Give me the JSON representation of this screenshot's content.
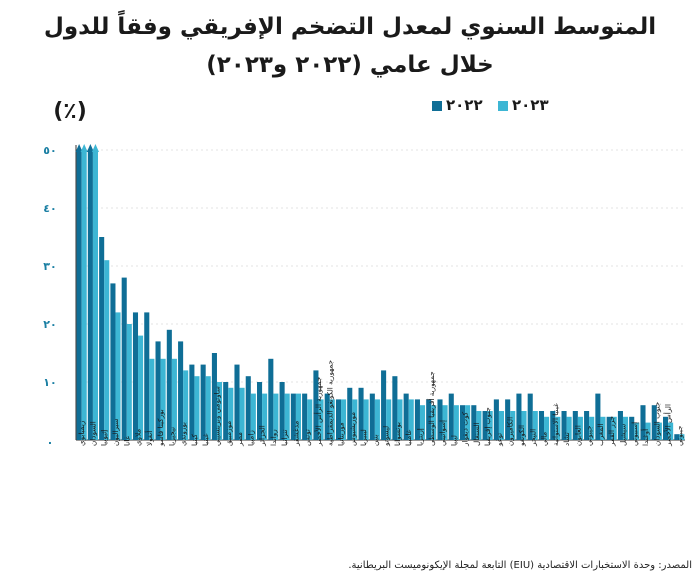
{
  "title_line1": "المتوسط السنوي لمعدل التضخم الإفريقي وفقاً للدول",
  "title_line2": "خلال عامي (٢٠٢٢ و٢٠٢٣)",
  "source": "المصدر: وحدة الاستخبارات الاقتصادية (EIU) التابعة لمجلة الإيكونوميست البريطانية.",
  "colors": {
    "series_2022": "#0f6e96",
    "series_2023": "#3db6d4",
    "axis": "#333333",
    "grid": "#c8c8c8",
    "tick_label": "#1a7fa3"
  },
  "chart_data": {
    "type": "bar",
    "ylabel": "(٪)",
    "ylim": [
      0,
      50
    ],
    "yticks": [
      0,
      10,
      20,
      30,
      40,
      50
    ],
    "ytick_labels": [
      ".",
      "١٠",
      "٢٠",
      "٣٠",
      "٤٠",
      "٥٠"
    ],
    "legend": "top-right",
    "series": [
      {
        "name": "٢٠٢٢",
        "values": [
          50,
          50,
          35,
          27,
          28,
          22,
          22,
          17,
          19,
          17,
          13,
          13,
          15,
          10,
          13,
          11,
          10,
          14,
          10,
          8,
          8,
          12,
          8,
          7,
          9,
          9,
          8,
          12,
          11,
          8,
          7,
          7,
          7,
          8,
          6,
          6,
          5,
          7,
          7,
          8,
          8,
          5,
          5,
          5,
          5,
          5,
          8,
          4,
          5,
          4,
          6,
          6,
          4,
          1
        ]
      },
      {
        "name": "٢٠٢٣",
        "values": [
          50,
          50,
          31,
          22,
          20,
          18,
          14,
          14,
          14,
          12,
          11,
          11,
          10,
          9,
          9,
          8,
          8,
          8,
          8,
          8,
          7,
          7,
          7,
          7,
          7,
          7,
          7,
          7,
          7,
          7,
          6,
          6,
          6,
          6,
          6,
          5,
          5,
          5,
          5,
          5,
          5,
          4,
          4,
          4,
          4,
          4,
          4,
          4,
          4,
          3,
          3,
          3,
          3,
          1
        ]
      }
    ],
    "truncated": [
      true,
      true
    ],
    "categories": [
      "زيمبابوي",
      "السودان",
      "إثيوبيا",
      "سيراليون",
      "غانا",
      "ملاوي",
      "أنغولا",
      "بوركينا فاسو",
      "نيجيريا",
      "بوروندي",
      "كينيا",
      "غينيا",
      "ساوتومي وبرينسيبي",
      "موزمبيق",
      "مصر",
      "زامبيا",
      "الجزائر",
      "رواندا",
      "تنزانيا",
      "مدغشقر",
      "تونس",
      "جمهورية الرأس الأخضر",
      "جمهورية الكونغو الديمقراطية",
      "موريتانيا",
      "موريشيوس",
      "ليبيريا",
      "بنين",
      "ليسوتو",
      "بوتسوانا",
      "غامبيا",
      "إريتريا",
      "جمهورية أفريقيا الوسطى",
      "إسواتيني",
      "ليبيا",
      "كوت ديفوار",
      "السنغال",
      "جنوب إفريقيا",
      "توغو",
      "الكاميرون",
      "الكونغو",
      "النيجر",
      "مالي",
      "غينيا الاستوائية",
      "تشاد",
      "الغابون",
      "جيبوتي",
      "المغرب",
      "جزر القمر",
      "سيشيل",
      "إسبيوتي",
      "أوغندا",
      "جنوب السودان",
      "الرأس الأخضر",
      "جيبوتي"
    ]
  }
}
